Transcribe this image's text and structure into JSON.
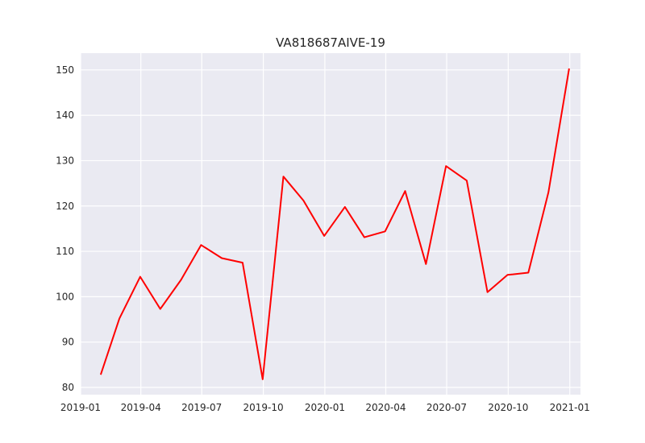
{
  "chart_data": {
    "type": "line",
    "title": "VA818687AIVE-19",
    "xlabel": "",
    "ylabel": "",
    "x": [
      "2019-01-31",
      "2019-02-28",
      "2019-03-31",
      "2019-04-30",
      "2019-05-31",
      "2019-06-30",
      "2019-07-31",
      "2019-08-31",
      "2019-09-30",
      "2019-10-31",
      "2019-11-30",
      "2019-12-31",
      "2020-01-31",
      "2020-02-29",
      "2020-03-31",
      "2020-04-30",
      "2020-05-31",
      "2020-06-30",
      "2020-07-31",
      "2020-08-31",
      "2020-09-30",
      "2020-10-31",
      "2020-11-30",
      "2020-12-31"
    ],
    "series": [
      {
        "color": "#ff0000",
        "values": [
          82.8,
          95.2,
          104.4,
          97.3,
          103.7,
          111.4,
          108.5,
          107.5,
          81.8,
          126.5,
          121.2,
          113.4,
          119.8,
          113.1,
          114.4,
          123.3,
          107.2,
          128.8,
          125.6,
          101.0,
          104.8,
          105.3,
          123.0,
          150.3
        ]
      }
    ],
    "x_ticks": [
      "2019-01",
      "2019-04",
      "2019-07",
      "2019-10",
      "2020-01",
      "2020-04",
      "2020-07",
      "2020-10",
      "2021-01"
    ],
    "y_ticks": [
      80,
      90,
      100,
      110,
      120,
      130,
      140,
      150
    ],
    "xlim": [
      "2019-01-01",
      "2021-01-17"
    ],
    "ylim": [
      78.4,
      153.7
    ],
    "grid": true,
    "background": "#eaeaf2"
  }
}
